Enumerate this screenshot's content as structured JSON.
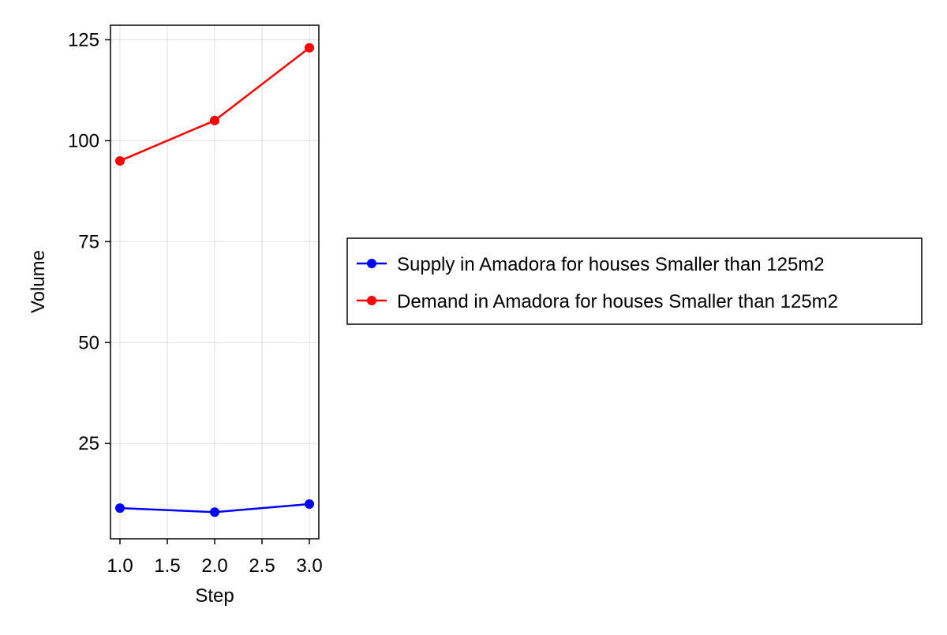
{
  "chart_data": {
    "type": "line",
    "title": "",
    "xlabel": "Step",
    "ylabel": "Volume",
    "xlim": [
      0.9,
      3.1
    ],
    "ylim": [
      1.4,
      128.6
    ],
    "xticks": [
      1.0,
      1.5,
      2.0,
      2.5,
      3.0
    ],
    "xtick_labels": [
      "1.0",
      "1.5",
      "2.0",
      "2.5",
      "3.0"
    ],
    "yticks": [
      25,
      50,
      75,
      100,
      125
    ],
    "ytick_labels": [
      "25",
      "50",
      "75",
      "100",
      "125"
    ],
    "grid": true,
    "legend_position": "right",
    "x": [
      1,
      2,
      3
    ],
    "series": [
      {
        "name": "Supply in Amadora for houses Smaller than 125m2",
        "color": "#0000ff",
        "values": [
          9,
          8,
          10
        ]
      },
      {
        "name": "Demand in Amadora for houses Smaller than 125m2",
        "color": "#ff0000",
        "values": [
          95,
          105,
          123
        ]
      }
    ]
  }
}
